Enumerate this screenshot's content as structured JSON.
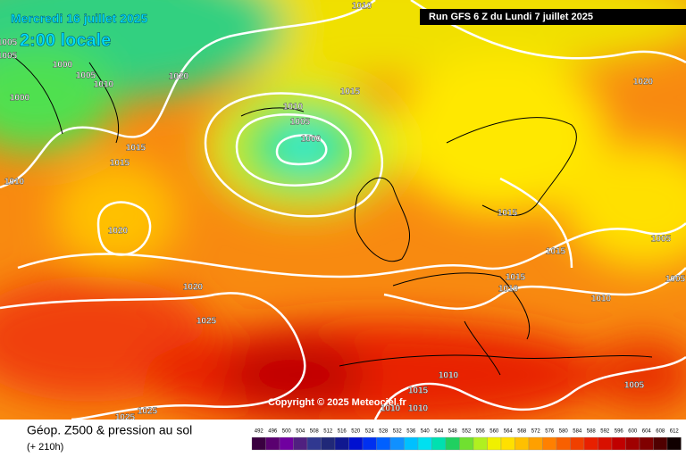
{
  "header": {
    "date": "Mercredi 16 juillet 2025",
    "time": "2:00 locale",
    "run": "Run GFS 6 Z du Lundi 7 juillet 2025"
  },
  "copyright": "Copyright © 2025 Meteociel.fr",
  "footer": {
    "title": "Géop. Z500 & pression au sol",
    "lead": "(+ 210h)"
  },
  "isobars": {
    "labels": [
      1010,
      1005,
      1005,
      1000,
      1005,
      1010,
      1020,
      1000,
      1015,
      1010,
      1005,
      1000,
      1015,
      1015,
      1010,
      1020,
      1015,
      1015,
      1005,
      1015,
      1010,
      1010,
      1020,
      1025,
      1010,
      1015,
      1010,
      1010,
      1005,
      1025,
      1025,
      1020,
      1005
    ]
  },
  "scale": {
    "values": [
      492,
      496,
      500,
      504,
      508,
      512,
      516,
      520,
      524,
      528,
      532,
      536,
      540,
      544,
      548,
      552,
      556,
      560,
      564,
      568,
      572,
      576,
      580,
      584,
      588,
      592,
      596,
      600,
      604,
      608,
      612
    ],
    "colors": [
      "#3a0040",
      "#5a0070",
      "#7000a0",
      "#502080",
      "#303890",
      "#202878",
      "#101890",
      "#0010d0",
      "#0030f0",
      "#0060ff",
      "#1090ff",
      "#00c0ff",
      "#00e0f0",
      "#00e0b0",
      "#20d060",
      "#70e030",
      "#b0f020",
      "#f0f000",
      "#ffe000",
      "#ffc000",
      "#ffa000",
      "#ff8000",
      "#f86000",
      "#f04000",
      "#e82000",
      "#d81000",
      "#c00000",
      "#a00000",
      "#800000",
      "#500000",
      "#100000"
    ]
  }
}
